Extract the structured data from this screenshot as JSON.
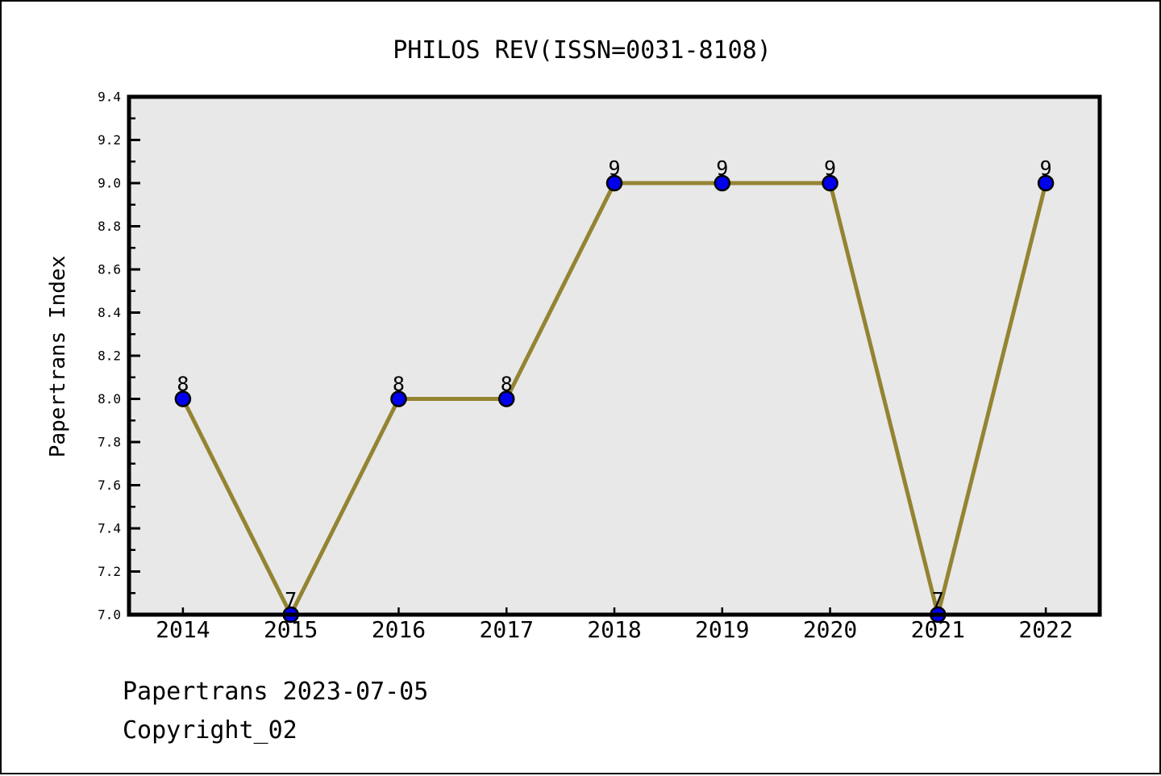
{
  "title": "PHILOS REV(ISSN=0031-8108)",
  "chart_data": {
    "type": "line",
    "title": "PHILOS REV(ISSN=0031-8108)",
    "categories": [
      "2014",
      "2015",
      "2016",
      "2017",
      "2018",
      "2019",
      "2020",
      "2021",
      "2022"
    ],
    "values": [
      8,
      7,
      8,
      8,
      9,
      9,
      9,
      7,
      9
    ],
    "xlabel": "",
    "ylabel": "Papertrans Index",
    "ylim": [
      7.0,
      9.4
    ],
    "ytick_major_step": 0.2,
    "ytick_minor_step": 0.1,
    "grid": false,
    "legend": null,
    "show_point_labels": true,
    "colors": {
      "line": "#948432",
      "marker_fill": "#0000EE",
      "marker_edge": "#000000",
      "plot_background": "#E8E8E8",
      "figure_background": "#FFFFFF",
      "axis": "#000000",
      "text": "#000000"
    }
  },
  "footer": {
    "line1": "Papertrans 2023-07-05",
    "line2": "Copyright_02"
  }
}
